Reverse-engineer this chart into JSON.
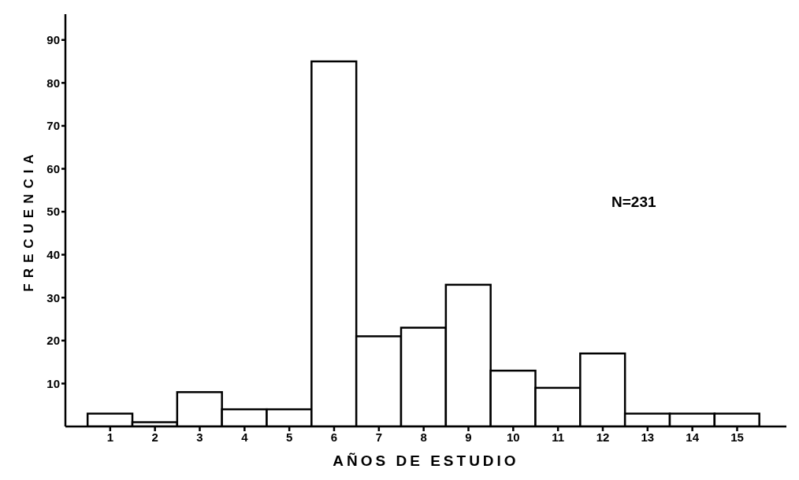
{
  "chart_data": {
    "type": "histogram",
    "xlabel": "AÑOS DE ESTUDIO",
    "ylabel": "FRECUENCIA",
    "annotations": [
      "N=231"
    ],
    "bins": [
      0.5,
      1.5,
      2.5,
      3.5,
      4.5,
      5.5,
      6.5,
      7.5,
      8.5,
      9.5,
      10.5,
      11.5,
      12.5,
      13.5,
      14.5,
      15.5
    ],
    "values": [
      3,
      1,
      8,
      4,
      4,
      85,
      21,
      23,
      33,
      13,
      9,
      17,
      3,
      3,
      3
    ],
    "color": "#ffffff",
    "xlim": [
      0,
      16.1
    ],
    "xticks": [
      1,
      2,
      3,
      4,
      5,
      6,
      7,
      8,
      9,
      10,
      11,
      12,
      13,
      14,
      15
    ],
    "ylim": [
      0,
      96
    ],
    "yticks": [
      10,
      20,
      30,
      40,
      50,
      60,
      70,
      80,
      90
    ],
    "grid": false
  }
}
